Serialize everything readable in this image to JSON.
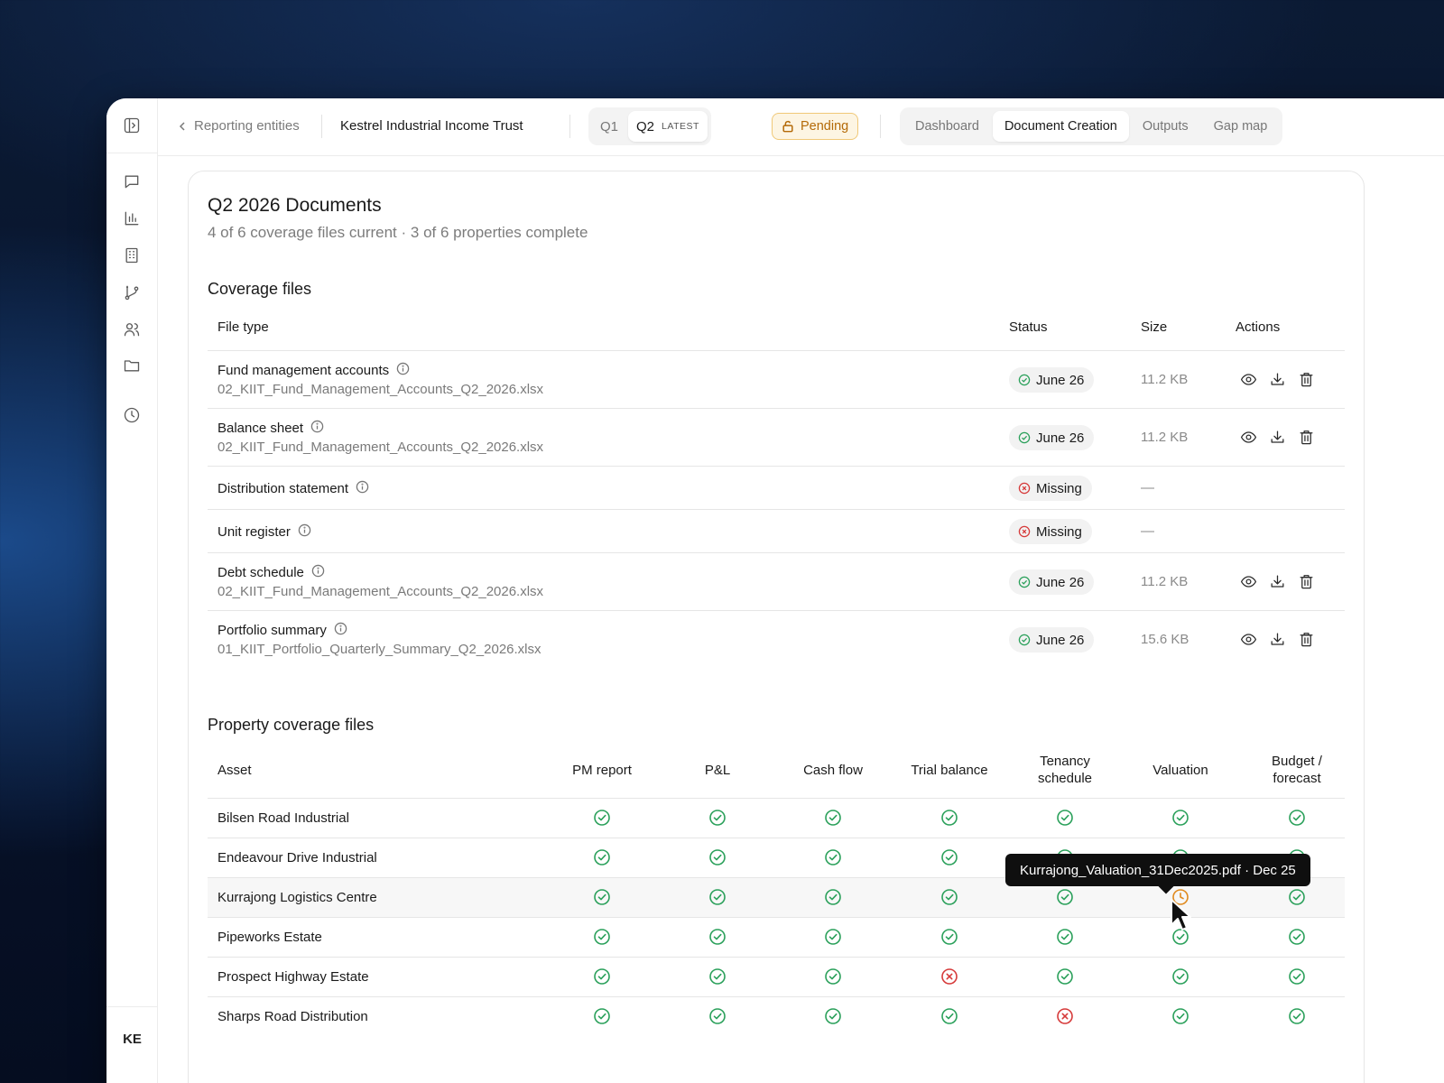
{
  "topbar": {
    "back_label": "Reporting entities",
    "entity": "Kestrel Industrial Income Trust",
    "quarters": [
      "Q1",
      "Q2"
    ],
    "latest_label": "LATEST",
    "status": "Pending",
    "tabs": [
      "Dashboard",
      "Document Creation",
      "Outputs",
      "Gap map"
    ]
  },
  "user": {
    "initials": "KE"
  },
  "page": {
    "title": "Q2 2026 Documents",
    "subtitle": "4 of 6 coverage files current · 3 of 6 properties complete"
  },
  "coverage": {
    "heading": "Coverage files",
    "columns": [
      "File type",
      "Status",
      "Size",
      "Actions"
    ],
    "rows": [
      {
        "name": "Fund management accounts",
        "file": "02_KIIT_Fund_Management_Accounts_Q2_2026.xlsx",
        "status": "June 26",
        "ok": true,
        "size": "11.2 KB"
      },
      {
        "name": "Balance sheet",
        "file": "02_KIIT_Fund_Management_Accounts_Q2_2026.xlsx",
        "status": "June 26",
        "ok": true,
        "size": "11.2 KB"
      },
      {
        "name": "Distribution statement",
        "file": "",
        "status": "Missing",
        "ok": false,
        "size": "—"
      },
      {
        "name": "Unit register",
        "file": "",
        "status": "Missing",
        "ok": false,
        "size": "—"
      },
      {
        "name": "Debt schedule",
        "file": "02_KIIT_Fund_Management_Accounts_Q2_2026.xlsx",
        "status": "June 26",
        "ok": true,
        "size": "11.2 KB"
      },
      {
        "name": "Portfolio summary",
        "file": "01_KIIT_Portfolio_Quarterly_Summary_Q2_2026.xlsx",
        "status": "June 26",
        "ok": true,
        "size": "15.6 KB"
      }
    ]
  },
  "property": {
    "heading": "Property coverage files",
    "columns": [
      "Asset",
      "PM report",
      "P&L",
      "Cash flow",
      "Trial balance",
      "Tenancy schedule",
      "Valuation",
      "Budget / forecast"
    ],
    "column_lines": [
      [
        "Asset"
      ],
      [
        "PM report"
      ],
      [
        "P&L"
      ],
      [
        "Cash flow"
      ],
      [
        "Trial balance"
      ],
      [
        "Tenancy",
        "schedule"
      ],
      [
        "Valuation"
      ],
      [
        "Budget /",
        "forecast"
      ]
    ],
    "rows": [
      {
        "asset": "Bilsen Road Industrial",
        "cells": [
          "ok",
          "ok",
          "ok",
          "ok",
          "ok",
          "ok",
          "ok"
        ]
      },
      {
        "asset": "Endeavour Drive Industrial",
        "cells": [
          "ok",
          "ok",
          "ok",
          "ok",
          "ok",
          "ok",
          "ok"
        ]
      },
      {
        "asset": "Kurrajong Logistics Centre",
        "cells": [
          "ok",
          "ok",
          "ok",
          "ok",
          "ok",
          "stale",
          "ok"
        ]
      },
      {
        "asset": "Pipeworks Estate",
        "cells": [
          "ok",
          "ok",
          "ok",
          "ok",
          "ok",
          "ok",
          "ok"
        ]
      },
      {
        "asset": "Prospect Highway Estate",
        "cells": [
          "ok",
          "ok",
          "ok",
          "missing",
          "ok",
          "ok",
          "ok"
        ]
      },
      {
        "asset": "Sharps Road Distribution",
        "cells": [
          "ok",
          "ok",
          "ok",
          "ok",
          "missing",
          "ok",
          "ok"
        ]
      }
    ]
  },
  "tooltip": "Kurrajong_Valuation_31Dec2025.pdf · Dec 25",
  "colors": {
    "ok": "#2aa05a",
    "missing": "#d63a3a",
    "stale": "#e08a1e",
    "pending_bg": "#fdf5e3",
    "pending_text": "#b46a08"
  }
}
